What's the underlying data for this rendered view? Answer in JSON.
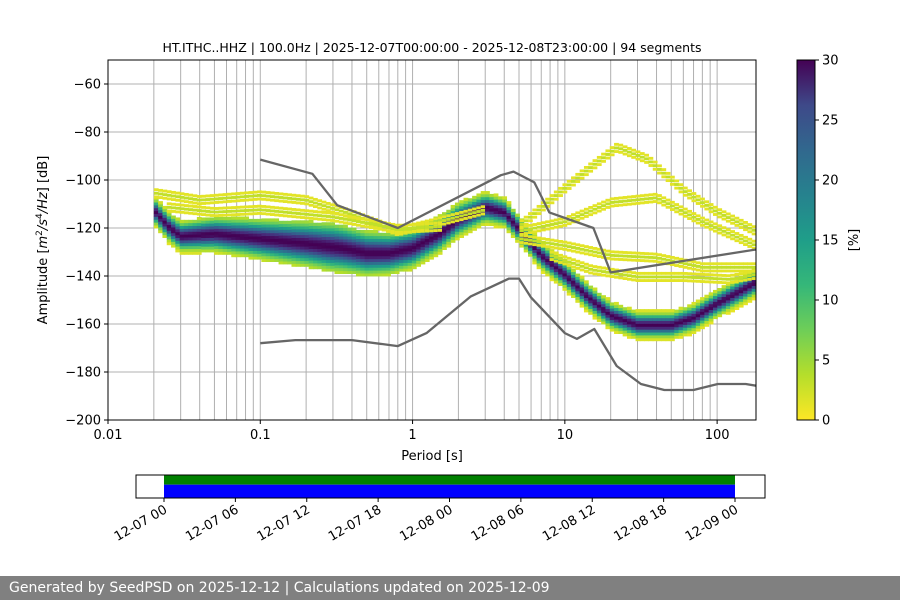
{
  "chart_data": {
    "type": "heatmap",
    "title": "HT.ITHC..HHZ | 100.0Hz | 2025-12-07T00:00:00 - 2025-12-08T23:00:00 | 94 segments",
    "xlabel": "Period [s]",
    "ylabel_parts": [
      "Amplitude [",
      "m",
      "2",
      "/s",
      "4",
      "/Hz",
      "] [dB]"
    ],
    "x_scale": "log",
    "xlim": [
      0.01,
      180
    ],
    "ylim": [
      -200,
      -50
    ],
    "xticks": [
      0.01,
      0.1,
      1,
      10,
      100
    ],
    "xtick_labels": [
      "0.01",
      "0.1",
      "1",
      "10",
      "100"
    ],
    "yticks": [
      -200,
      -180,
      -160,
      -140,
      -120,
      -100,
      -80,
      -60
    ],
    "ytick_labels": [
      "−200",
      "−180",
      "−160",
      "−140",
      "−120",
      "−100",
      "−80",
      "−60"
    ],
    "grid": true,
    "colorbar": {
      "label": "[%]",
      "range": [
        0,
        30
      ],
      "ticks": [
        0,
        5,
        10,
        15,
        20,
        25,
        30
      ],
      "tick_labels": [
        "0",
        "5",
        "10",
        "15",
        "20",
        "25",
        "30"
      ],
      "colormap": "viridis_r"
    },
    "noise_models": {
      "high": {
        "period": [
          0.1,
          0.22,
          0.32,
          0.8,
          3.8,
          4.6,
          6.3,
          7.9,
          15.4,
          20,
          354.8
        ],
        "db": [
          -91.5,
          -97.4,
          -110.5,
          -120.0,
          -98.0,
          -96.5,
          -101.0,
          -113.5,
          -120.0,
          -138.5,
          -126.0
        ]
      },
      "low": {
        "period": [
          0.1,
          0.17,
          0.4,
          0.8,
          1.24,
          2.4,
          4.3,
          5.0,
          6.0,
          10.0,
          12.0,
          15.6,
          21.9,
          31.6,
          45.0,
          70.0,
          101.0,
          154.0,
          180.0
        ],
        "db": [
          -168.0,
          -166.7,
          -166.7,
          -169.2,
          -163.7,
          -148.6,
          -141.1,
          -141.1,
          -149.0,
          -163.8,
          -166.2,
          -162.1,
          -177.5,
          -185.0,
          -187.5,
          -187.5,
          -185.0,
          -185.0,
          -185.7
        ]
      }
    },
    "psd_modes": [
      {
        "name": "dominant",
        "period": [
          0.02,
          0.025,
          0.03,
          0.05,
          0.1,
          0.2,
          0.35,
          0.5,
          0.7,
          1.0,
          1.5,
          2.0,
          3.0,
          4.0,
          5.0,
          7.0,
          10.0,
          14.0,
          20.0,
          30.0,
          50.0,
          70.0,
          100.0,
          150.0,
          180.0
        ],
        "db": [
          -113,
          -120,
          -124,
          -123,
          -125,
          -127,
          -129,
          -131,
          -131,
          -129,
          -123,
          -117,
          -112,
          -114,
          -121,
          -132,
          -140,
          -149,
          -157,
          -161,
          -161,
          -158,
          -152,
          -146,
          -143
        ]
      },
      {
        "name": "upper",
        "period": [
          0.02,
          0.04,
          0.1,
          0.2,
          0.4,
          0.8,
          1.5,
          3.0
        ],
        "db": [
          -106,
          -109,
          -107,
          -109,
          -115,
          -122,
          -118,
          -113
        ]
      },
      {
        "name": "upper-2",
        "period": [
          0.025,
          0.05,
          0.1,
          0.3,
          0.8,
          1.6
        ],
        "db": [
          -112,
          -114,
          -113,
          -116,
          -121,
          -120
        ]
      },
      {
        "name": "long-period-high",
        "period": [
          5.0,
          10.0,
          15.0,
          22.0,
          35.0,
          60.0,
          100.0,
          180.0
        ],
        "db": [
          -120,
          -104,
          -95,
          -87,
          -92,
          -105,
          -114,
          -122
        ]
      },
      {
        "name": "long-period-mid",
        "period": [
          5.0,
          10.0,
          20.0,
          40.0,
          80.0,
          180.0
        ],
        "db": [
          -122,
          -118,
          -110,
          -108,
          -118,
          -128
        ]
      },
      {
        "name": "long-period-low",
        "period": [
          5.0,
          10.0,
          20.0,
          40.0,
          80.0,
          180.0
        ],
        "db": [
          -125,
          -128,
          -132,
          -133,
          -137,
          -137
        ]
      },
      {
        "name": "long-period-lower",
        "period": [
          8.0,
          15.0,
          30.0,
          60.0,
          120.0,
          180.0
        ],
        "db": [
          -132,
          -138,
          -141,
          -141,
          -142,
          -140
        ]
      }
    ],
    "timeline": {
      "ticks": [
        "12-07 00",
        "12-07 06",
        "12-07 12",
        "12-07 18",
        "12-08 00",
        "12-08 06",
        "12-08 12",
        "12-08 18",
        "12-09 00"
      ],
      "data_start": "12-07 00",
      "data_end": "12-09 00",
      "top_color": "#008000",
      "bottom_color": "#0000ff"
    }
  },
  "footer": {
    "text": "Generated by SeedPSD on 2025-12-12 | Calculations updated on 2025-12-09"
  },
  "colors": {
    "noise_model_line": "#666666",
    "grid": "#b0b0b0"
  }
}
